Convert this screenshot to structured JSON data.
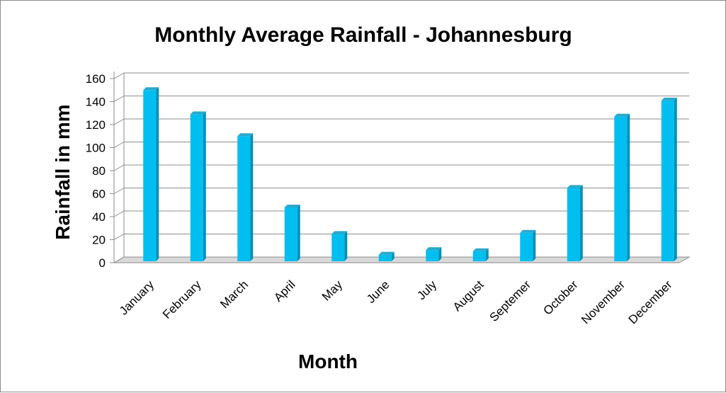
{
  "chart_data": {
    "type": "bar",
    "title": "Monthly Average Rainfall - Johannesburg",
    "xlabel": "Month",
    "ylabel": "Rainfall in mm",
    "categories": [
      "January",
      "February",
      "March",
      "April",
      "May",
      "June",
      "July",
      "August",
      "Septemer",
      "October",
      "November",
      "December"
    ],
    "values": [
      150,
      129,
      110,
      48,
      25,
      7,
      11,
      10,
      26,
      65,
      127,
      141
    ],
    "ylim": [
      0,
      160
    ],
    "yticks": [
      "0",
      "20",
      "40",
      "60",
      "80",
      "100",
      "120",
      "140",
      "160"
    ],
    "grid": true,
    "legend": "none",
    "bar_color": "#00BFF0",
    "bar_side_color": "#0090BA",
    "bar_top_color": "#2BA7CC"
  }
}
